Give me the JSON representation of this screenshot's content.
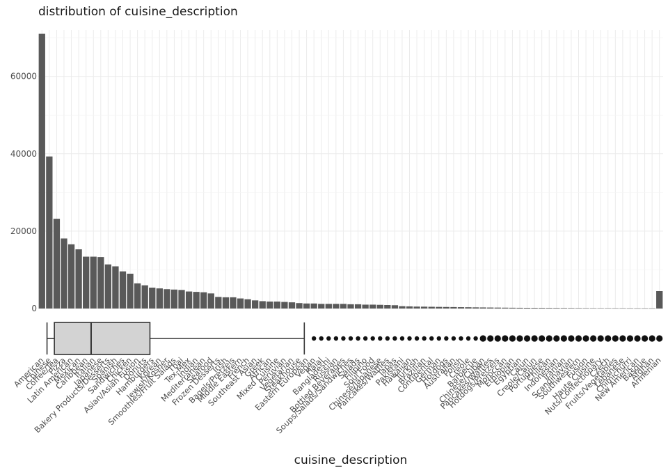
{
  "chart_data": {
    "type": "bar",
    "title": "distribution of cuisine_description",
    "xlabel": "cuisine_description",
    "ylabel": "",
    "ylim": [
      0,
      72000
    ],
    "yticks": [
      0,
      20000,
      40000,
      60000
    ],
    "grid": true,
    "categories": [
      "American",
      "Chinese",
      "Coffee/Tea",
      "Pizza",
      "Latin American",
      "Mexican",
      "Caribbean",
      "Italian",
      "Japanese",
      "Bakery Products/Desserts",
      "Spanish",
      "Sandwiches",
      "Chicken",
      "Asian/Asian Fusion",
      "Donuts",
      "Hamburgers",
      "Korean",
      "Jewish/Kosher",
      "Smoothies/Fruit Salads",
      "Thai",
      "Tex-Mex",
      "Indian",
      "Mediterranean",
      "Seafood",
      "Frozen Desserts",
      "Irish",
      "Bagels/Pretzels",
      "Middle Eastern",
      "French",
      "Southeast Asian",
      "Greek",
      "African",
      "Mixed Cuisine",
      "Peruvian",
      "Vegetarian",
      "Steakhouse",
      "Eastern European",
      "Vegan",
      "Halal",
      "Bangladeshi",
      "Russian",
      "Bottled Beverages",
      "Soups/Salads/Sandwiches",
      "Salads",
      "Filipino",
      "Soul Food",
      "Chinese/Japanese",
      "Pancakes/Waffles",
      "Tapas",
      "Pakistani",
      "Hawaiian",
      "Turkish",
      "Brazilian",
      "Continental",
      "German",
      "Hotdogs",
      "Australian",
      "Polish",
      "Creole",
      "Barbecue",
      "Chinese/Cuban",
      "Pancakes/Waffles",
      "Hotdogs/Pretzels",
      "Moroccan",
      "Ethiopian",
      "Egyptian",
      "Cajun",
      "Creole/Cajun",
      "Portuguese",
      "Chilean",
      "Indonesian",
      "Iranian",
      "Scandinavian",
      "Southwestern",
      "Fusion",
      "Haute Cuisine",
      "Nuts/Confectionary",
      "Czech",
      "Fruits/Vegetables",
      "Lebanese",
      "Chimichurri",
      "New American",
      "Basque",
      "Afghan",
      "Armenian"
    ],
    "values": [
      71000,
      39300,
      23200,
      18100,
      16600,
      15300,
      13400,
      13400,
      13300,
      11400,
      10900,
      9600,
      9000,
      6500,
      6000,
      5400,
      5200,
      5000,
      4900,
      4800,
      4400,
      4300,
      4200,
      3900,
      3000,
      2900,
      2900,
      2600,
      2400,
      2100,
      1900,
      1800,
      1800,
      1700,
      1600,
      1400,
      1300,
      1300,
      1200,
      1200,
      1200,
      1200,
      1100,
      1100,
      1000,
      1000,
      950,
      900,
      850,
      600,
      550,
      500,
      480,
      450,
      420,
      400,
      380,
      350,
      330,
      300,
      280,
      260,
      240,
      220,
      200,
      190,
      180,
      170,
      160,
      150,
      140,
      130,
      120,
      110,
      100,
      95,
      90,
      85,
      80,
      70,
      60,
      55,
      50,
      45,
      4500
    ],
    "boxplot": {
      "whisker_low_index": 1,
      "q1_index": 2,
      "median_index": 7,
      "q3_index": 15,
      "whisker_high_index": 36,
      "outlier_indices_start": 37
    }
  }
}
